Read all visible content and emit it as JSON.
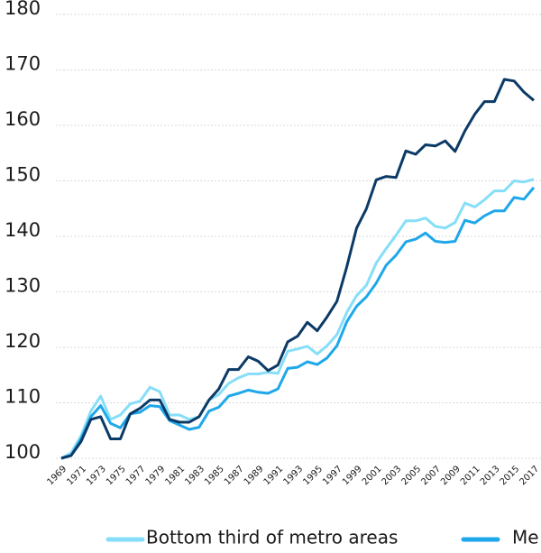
{
  "chart_data": {
    "type": "line",
    "x": [
      1969,
      1970,
      1971,
      1972,
      1973,
      1974,
      1975,
      1976,
      1977,
      1978,
      1979,
      1980,
      1981,
      1982,
      1983,
      1984,
      1985,
      1986,
      1987,
      1988,
      1989,
      1990,
      1991,
      1992,
      1993,
      1994,
      1995,
      1996,
      1997,
      1998,
      1999,
      2000,
      2001,
      2002,
      2003,
      2004,
      2005,
      2006,
      2007,
      2008,
      2009,
      2010,
      2011,
      2012,
      2013,
      2014,
      2015,
      2016,
      2017
    ],
    "series": [
      {
        "name": "Bottom third of metro areas",
        "color": "#86def8",
        "values": [
          100,
          101,
          104,
          108.5,
          111.2,
          107,
          107.8,
          109.8,
          110.3,
          112.8,
          112,
          107.8,
          107.8,
          107,
          107.5,
          110.5,
          111.5,
          113.5,
          114.5,
          115.2,
          115.2,
          115.5,
          115.3,
          119.3,
          119.7,
          120.2,
          118.8,
          120.3,
          122.3,
          126.3,
          129.3,
          131.2,
          135.2,
          137.8,
          140.2,
          142.8,
          142.8,
          143.3,
          141.8,
          141.5,
          142.5,
          146,
          145.3,
          146.6,
          148.2,
          148.2,
          150,
          149.8,
          150.3
        ]
      },
      {
        "name": "Me",
        "color": "#1ea7ea",
        "values": [
          100,
          100.5,
          103.5,
          107.5,
          109.5,
          106.3,
          105.5,
          108,
          108.3,
          109.5,
          109.3,
          106.8,
          106,
          105.2,
          105.6,
          108.5,
          109.2,
          111.2,
          111.7,
          112.3,
          111.9,
          111.7,
          112.5,
          116.2,
          116.4,
          117.4,
          116.9,
          118.1,
          120.3,
          124.6,
          127.4,
          129.1,
          131.6,
          134.8,
          136.6,
          139,
          139.5,
          140.6,
          139.1,
          138.9,
          139.1,
          142.9,
          142.4,
          143.7,
          144.6,
          144.6,
          147,
          146.7,
          148.8
        ]
      },
      {
        "color": "#0c3a66",
        "values": [
          100,
          100.5,
          103,
          107,
          107.5,
          103.5,
          103.5,
          108,
          109,
          110.5,
          110.5,
          107,
          106.5,
          106.5,
          107.5,
          110.5,
          112.5,
          116,
          116,
          118.3,
          117.5,
          115.8,
          116.8,
          121,
          122,
          124.5,
          123,
          125.5,
          128.3,
          134.5,
          141.5,
          145,
          150.2,
          150.8,
          150.6,
          155.4,
          154.8,
          156.5,
          156.3,
          157.2,
          155.3,
          159,
          162,
          164.3,
          164.3,
          168.3,
          168,
          166,
          164.5
        ]
      }
    ],
    "xlim": [
      1969,
      2017
    ],
    "xticks": [
      1969,
      1971,
      1973,
      1975,
      1977,
      1979,
      1981,
      1983,
      1985,
      1987,
      1989,
      1991,
      1993,
      1995,
      1997,
      1999,
      2001,
      2003,
      2005,
      2007,
      2009,
      2011,
      2013,
      2015,
      2017
    ],
    "ylim": [
      100,
      180
    ],
    "yticks": [
      100,
      110,
      120,
      130,
      140,
      150,
      160,
      170,
      180
    ],
    "grid": true
  }
}
